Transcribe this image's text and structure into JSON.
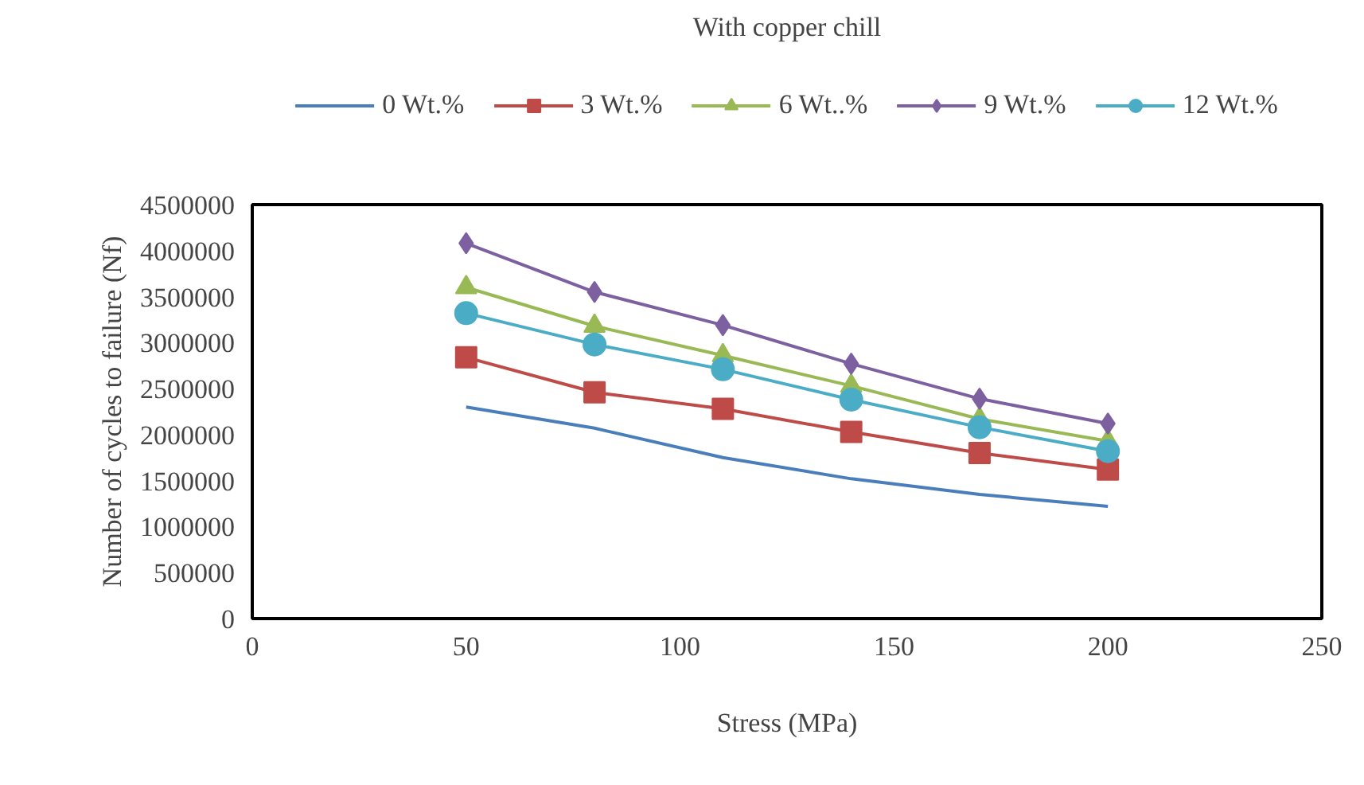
{
  "chart_data": {
    "type": "line",
    "title": "With copper chill",
    "xlabel": "Stress (MPa)",
    "ylabel": "Number of cycles to failure (Nf)",
    "x": [
      50,
      80,
      110,
      140,
      170,
      200
    ],
    "xlim": [
      0,
      250
    ],
    "xticks": [
      0,
      50,
      100,
      150,
      200,
      250
    ],
    "ylim": [
      0,
      4500000
    ],
    "yticks": [
      0,
      500000,
      1000000,
      1500000,
      2000000,
      2500000,
      3000000,
      3500000,
      4000000,
      4500000
    ],
    "grid": false,
    "legend": "top",
    "series": [
      {
        "name": "0 Wt.%",
        "color": "#4a7ebb",
        "marker": "none",
        "values": [
          2300000,
          2070000,
          1750000,
          1520000,
          1350000,
          1220000
        ]
      },
      {
        "name": "3 Wt.%",
        "color": "#be4b48",
        "marker": "square",
        "values": [
          2840000,
          2460000,
          2280000,
          2030000,
          1800000,
          1620000
        ]
      },
      {
        "name": "6 Wt..%",
        "color": "#98b954",
        "marker": "triangle",
        "values": [
          3600000,
          3180000,
          2860000,
          2530000,
          2170000,
          1930000
        ]
      },
      {
        "name": "9 Wt.%",
        "color": "#7d60a0",
        "marker": "diamond",
        "values": [
          4080000,
          3550000,
          3190000,
          2770000,
          2390000,
          2120000
        ]
      },
      {
        "name": "12 Wt.%",
        "color": "#4bacc6",
        "marker": "circle",
        "values": [
          3320000,
          2980000,
          2710000,
          2380000,
          2080000,
          1820000
        ]
      }
    ]
  }
}
